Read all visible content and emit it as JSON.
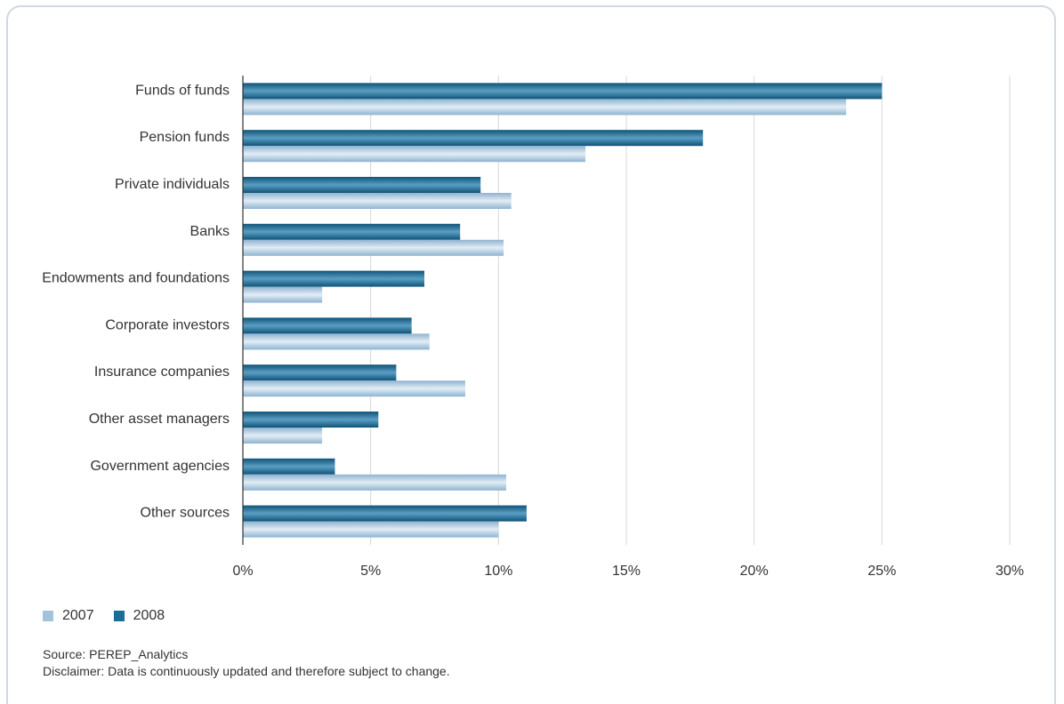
{
  "chart_data": {
    "type": "bar",
    "orientation": "horizontal",
    "categories": [
      "Funds of funds",
      "Pension funds",
      "Private individuals",
      "Banks",
      "Endowments and foundations",
      "Corporate investors",
      "Insurance companies",
      "Other asset managers",
      "Government agencies",
      "Other sources"
    ],
    "series": [
      {
        "name": "2008",
        "color": "#1b6c96",
        "values": [
          25.0,
          18.0,
          9.3,
          8.5,
          7.1,
          6.6,
          6.0,
          5.3,
          3.6,
          11.1
        ]
      },
      {
        "name": "2007",
        "color": "#a3c3dc",
        "values": [
          23.6,
          13.4,
          10.5,
          10.2,
          3.1,
          7.3,
          8.7,
          3.1,
          10.3,
          10.0
        ]
      }
    ],
    "xlim": [
      0,
      30
    ],
    "xticks": [
      "0%",
      "5%",
      "10%",
      "15%",
      "20%",
      "25%",
      "30%"
    ],
    "grid": true,
    "legend": [
      {
        "label": "2007",
        "color": "#a3c3dc"
      },
      {
        "label": "2008",
        "color": "#1b6c96"
      }
    ]
  },
  "footer": {
    "source": "Source: PEREP_Analytics",
    "disclaimer": "Disclaimer: Data is continuously updated and therefore subject to change."
  }
}
